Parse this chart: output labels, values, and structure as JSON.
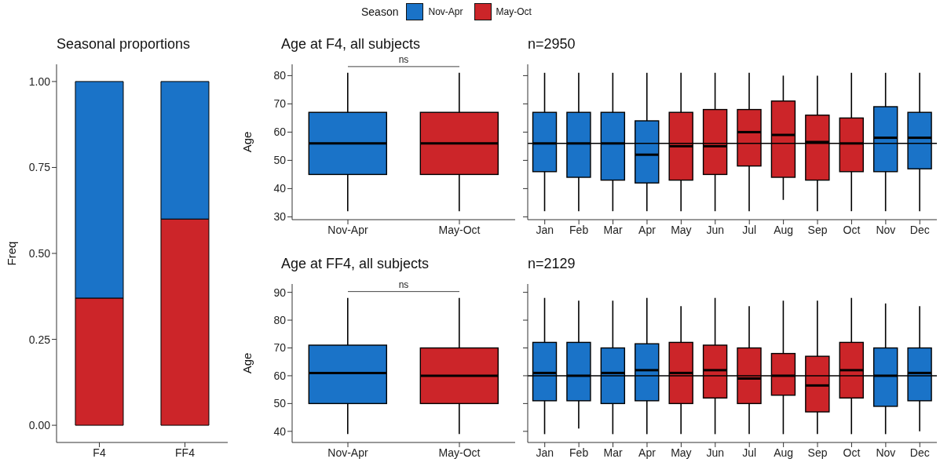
{
  "chart_data": [
    {
      "type": "bar",
      "title": "Seasonal proportions",
      "ylabel": "Freq",
      "categories": [
        "F4",
        "FF4"
      ],
      "stacked": true,
      "legend": "top",
      "legend_title": "Season",
      "series": [
        {
          "name": "May-Oct",
          "color": "#cc2529",
          "values": [
            0.37,
            0.6
          ]
        },
        {
          "name": "Nov-Apr",
          "color": "#1a73c8",
          "values": [
            0.63,
            0.4
          ]
        }
      ],
      "ylim": [
        -0.05,
        1.05
      ],
      "yticks": [
        {
          "value": 0,
          "label": "0.00"
        },
        {
          "value": 0.25,
          "label": "0.25"
        },
        {
          "value": 0.5,
          "label": "0.50"
        },
        {
          "value": 0.75,
          "label": "0.75"
        },
        {
          "value": 1,
          "label": "1.00"
        }
      ]
    },
    {
      "type": "box",
      "title": "Age at F4, all subjects",
      "ylabel": "Age",
      "categories": [
        "Nov-Apr",
        "May-Oct"
      ],
      "colors": [
        "#1a73c8",
        "#cc2529"
      ],
      "boxes": [
        {
          "low": 32,
          "q1": 45,
          "median": 56,
          "q3": 67,
          "high": 81
        },
        {
          "low": 32,
          "q1": 45,
          "median": 56,
          "q3": 67,
          "high": 81
        }
      ],
      "annotations": [
        "ns"
      ],
      "ylim": [
        29,
        84
      ],
      "yticks": [
        30,
        40,
        50,
        60,
        70,
        80
      ]
    },
    {
      "type": "box",
      "title": "Age at FF4, all subjects",
      "ylabel": "Age",
      "categories": [
        "Nov-Apr",
        "May-Oct"
      ],
      "colors": [
        "#1a73c8",
        "#cc2529"
      ],
      "boxes": [
        {
          "low": 39,
          "q1": 50,
          "median": 61,
          "q3": 71,
          "high": 88
        },
        {
          "low": 39,
          "q1": 50,
          "median": 60,
          "q3": 70,
          "high": 88
        }
      ],
      "annotations": [
        "ns"
      ],
      "ylim": [
        36,
        93
      ],
      "yticks": [
        40,
        50,
        60,
        70,
        80,
        90
      ]
    },
    {
      "type": "box",
      "title": "n=2950",
      "categories": [
        "Jan",
        "Feb",
        "Mar",
        "Apr",
        "May",
        "Jun",
        "Jul",
        "Aug",
        "Sep",
        "Oct",
        "Nov",
        "Dec"
      ],
      "colors": [
        "#1a73c8",
        "#1a73c8",
        "#1a73c8",
        "#1a73c8",
        "#cc2529",
        "#cc2529",
        "#cc2529",
        "#cc2529",
        "#cc2529",
        "#cc2529",
        "#1a73c8",
        "#1a73c8"
      ],
      "boxes": [
        {
          "low": 32,
          "q1": 46,
          "median": 56,
          "q3": 67,
          "high": 81
        },
        {
          "low": 32,
          "q1": 44,
          "median": 56,
          "q3": 67,
          "high": 81
        },
        {
          "low": 32,
          "q1": 43,
          "median": 56,
          "q3": 67,
          "high": 81
        },
        {
          "low": 32,
          "q1": 42,
          "median": 52,
          "q3": 64,
          "high": 81
        },
        {
          "low": 32,
          "q1": 43,
          "median": 55,
          "q3": 67,
          "high": 81
        },
        {
          "low": 32,
          "q1": 45,
          "median": 55,
          "q3": 68,
          "high": 81
        },
        {
          "low": 32,
          "q1": 48,
          "median": 60,
          "q3": 68,
          "high": 81
        },
        {
          "low": 36,
          "q1": 44,
          "median": 59,
          "q3": 71,
          "high": 80
        },
        {
          "low": 32,
          "q1": 43,
          "median": 56.5,
          "q3": 66,
          "high": 80
        },
        {
          "low": 32,
          "q1": 46,
          "median": 56,
          "q3": 65,
          "high": 81
        },
        {
          "low": 32,
          "q1": 46,
          "median": 58,
          "q3": 69,
          "high": 81
        },
        {
          "low": 32,
          "q1": 47,
          "median": 58,
          "q3": 67,
          "high": 81
        }
      ],
      "ref_lines": [
        {
          "axis": "y",
          "value": 56
        }
      ],
      "ylim": [
        29,
        84
      ],
      "yticks": [
        30,
        40,
        50,
        60,
        70,
        80
      ],
      "tick_labels": "x"
    },
    {
      "type": "box",
      "title": "n=2129",
      "categories": [
        "Jan",
        "Feb",
        "Mar",
        "Apr",
        "May",
        "Jun",
        "Jul",
        "Aug",
        "Sep",
        "Oct",
        "Nov",
        "Dec"
      ],
      "colors": [
        "#1a73c8",
        "#1a73c8",
        "#1a73c8",
        "#1a73c8",
        "#cc2529",
        "#cc2529",
        "#cc2529",
        "#cc2529",
        "#cc2529",
        "#cc2529",
        "#1a73c8",
        "#1a73c8"
      ],
      "boxes": [
        {
          "low": 39,
          "q1": 51,
          "median": 61,
          "q3": 72,
          "high": 88
        },
        {
          "low": 41,
          "q1": 51,
          "median": 60,
          "q3": 72,
          "high": 87
        },
        {
          "low": 39,
          "q1": 50,
          "median": 61,
          "q3": 70,
          "high": 87
        },
        {
          "low": 39,
          "q1": 51,
          "median": 62,
          "q3": 71.5,
          "high": 88
        },
        {
          "low": 39,
          "q1": 50,
          "median": 61,
          "q3": 72,
          "high": 85
        },
        {
          "low": 39,
          "q1": 52,
          "median": 62,
          "q3": 71,
          "high": 88
        },
        {
          "low": 39,
          "q1": 50,
          "median": 59,
          "q3": 70,
          "high": 85
        },
        {
          "low": 39,
          "q1": 53,
          "median": 60,
          "q3": 68,
          "high": 87
        },
        {
          "low": 39,
          "q1": 47,
          "median": 56.5,
          "q3": 67,
          "high": 87
        },
        {
          "low": 39,
          "q1": 52,
          "median": 62,
          "q3": 72,
          "high": 88
        },
        {
          "low": 39,
          "q1": 49,
          "median": 60,
          "q3": 70,
          "high": 86
        },
        {
          "low": 40,
          "q1": 51,
          "median": 61,
          "q3": 70,
          "high": 85
        }
      ],
      "ref_lines": [
        {
          "axis": "y",
          "value": 60
        }
      ],
      "ylim": [
        36,
        93
      ],
      "yticks": [
        40,
        50,
        60,
        70,
        80,
        90
      ],
      "tick_labels": "x"
    }
  ]
}
